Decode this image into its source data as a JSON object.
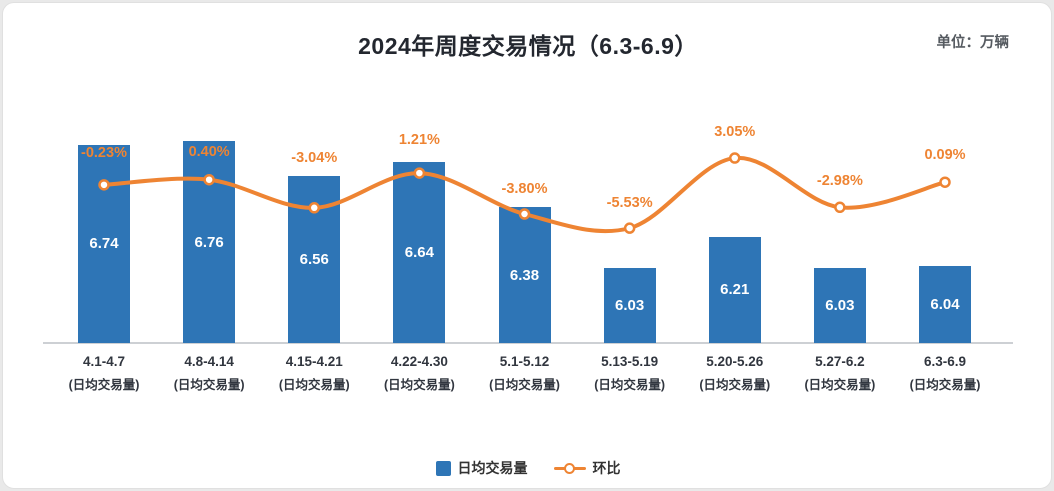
{
  "title": "2024年周度交易情况（6.3-6.9）",
  "unit_label": "单位：万辆",
  "legend": {
    "bar": "日均交易量",
    "line": "环比"
  },
  "colors": {
    "bar": "#2E75B6",
    "line": "#EE8433",
    "axis": "#cdd0d4",
    "title": "#23272F",
    "bar_value_label": "#FFFFFF",
    "pct_label": "#EE8433",
    "category_label": "#31363F"
  },
  "chart_data": {
    "type": "bar+line",
    "title": "2024年周度交易情况（6.3-6.9）",
    "unit": "万辆",
    "categories": [
      "4.1-4.7",
      "4.8-4.14",
      "4.15-4.21",
      "4.22-4.30",
      "5.1-5.12",
      "5.13-5.19",
      "5.20-5.26",
      "5.27-6.2",
      "6.3-6.9"
    ],
    "category_sublabel": "(日均交易量)",
    "series": [
      {
        "name": "日均交易量",
        "type": "bar",
        "values": [
          6.74,
          6.76,
          6.56,
          6.64,
          6.38,
          6.03,
          6.21,
          6.03,
          6.04
        ]
      },
      {
        "name": "环比",
        "type": "line",
        "values_pct": [
          -0.23,
          0.4,
          -3.04,
          1.21,
          -3.8,
          -5.53,
          3.05,
          -2.98,
          0.09
        ],
        "labels": [
          "-0.23%",
          "0.40%",
          "-3.04%",
          "1.21%",
          "-3.80%",
          "-5.53%",
          "3.05%",
          "-2.98%",
          "0.09%"
        ]
      }
    ],
    "layout": {
      "grid": false,
      "legend_position": "bottom",
      "bar_ylim": [
        5.6,
        7.0
      ],
      "line_ylim_pct": [
        -8,
        4
      ],
      "pct_label_dy": [
        -31,
        -27,
        -49,
        -32,
        -24,
        -24,
        -25,
        -25,
        -26
      ]
    }
  }
}
